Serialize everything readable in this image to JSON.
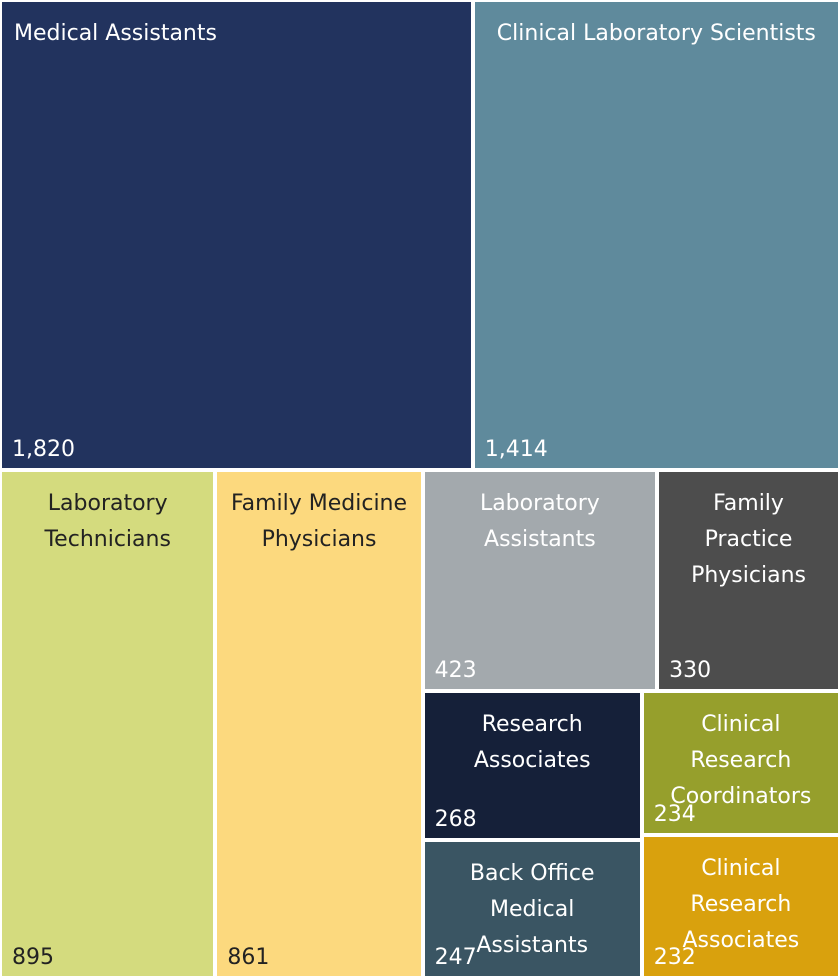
{
  "chart_data": {
    "type": "treemap",
    "categories": [
      "Medical Assistants",
      "Clinical Laboratory Scientists",
      "Laboratory Technicians",
      "Family Medicine Physicians",
      "Laboratory Assistants",
      "Family Practice Physicians",
      "Research Associates",
      "Back Office Medical Assistants",
      "Clinical Research Coordinators",
      "Clinical Research Associates"
    ],
    "values": [
      1820,
      1414,
      895,
      861,
      423,
      330,
      268,
      247,
      234,
      232
    ],
    "value_labels": [
      "1,820",
      "1,414",
      "895",
      "861",
      "423",
      "330",
      "268",
      "247",
      "234",
      "232"
    ],
    "colors": [
      "#22335e",
      "#5f8a9c",
      "#d4db7e",
      "#fcd97e",
      "#a3a9ad",
      "#4d4d4d",
      "#152039",
      "#3a5563",
      "#969f2c",
      "#d9a10d"
    ]
  }
}
